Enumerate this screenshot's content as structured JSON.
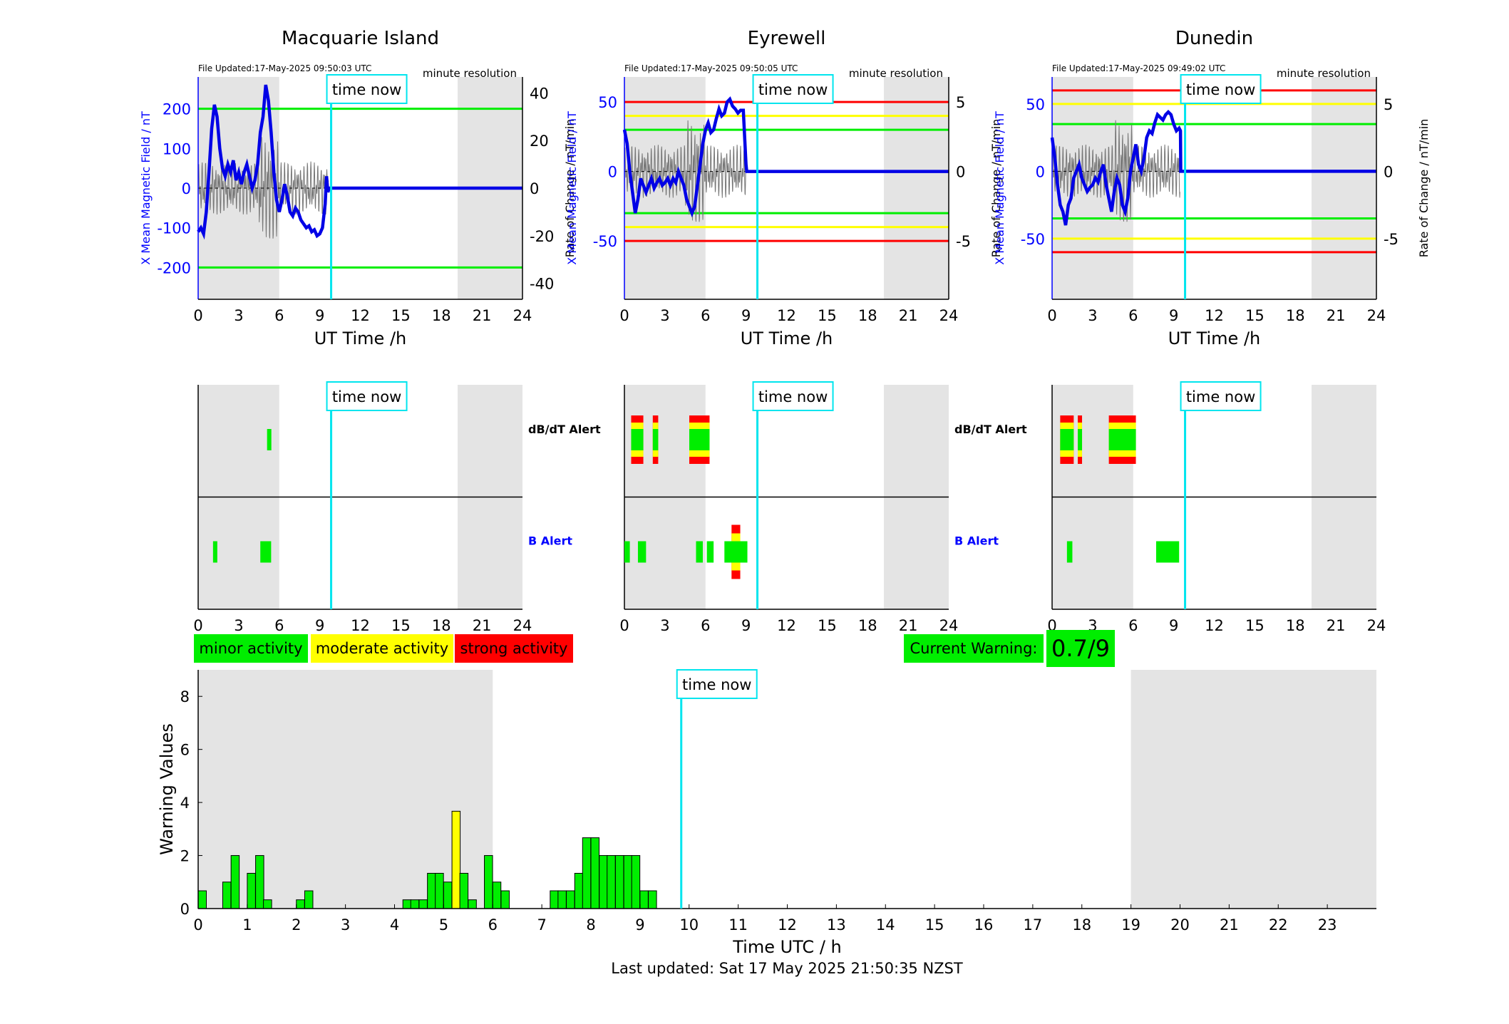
{
  "colors": {
    "data_line": "#0000e6",
    "rate_line": "#777777",
    "shade": "#e4e4e4",
    "time_now": "#00e5ee",
    "green": "#00ee00",
    "yellow": "#ffff00",
    "red": "#ff0000",
    "axis_blue": "#0000ff"
  },
  "time_now_label": "time now",
  "time_now_hour": 9.84,
  "resolution_label": "minute resolution",
  "x_axis_label": "UT Time /h",
  "top_left_ylabel": "X Mean Magnetic Field / nT",
  "top_right_ylabel": "Rate of Change / nT/min",
  "hour_ticks": [
    "0",
    "3",
    "6",
    "9",
    "12",
    "15",
    "18",
    "21",
    "24"
  ],
  "night_shading_hours": [
    [
      0,
      6
    ],
    [
      19.2,
      24
    ]
  ],
  "stations": [
    {
      "name": "Macquarie Island",
      "file_updated": "File Updated:17-May-2025 09:50:03 UTC",
      "left_ticks": [
        "200",
        "100",
        "0",
        "-100",
        "-200"
      ],
      "right_ticks": [
        "40",
        "20",
        "0",
        "-20",
        "-40"
      ],
      "left_ylim": [
        -280,
        280
      ],
      "threshold_lines": [
        {
          "value": 200,
          "color": "green"
        },
        {
          "value": -200,
          "color": "green"
        }
      ],
      "field_trace": [
        [
          0,
          -110
        ],
        [
          0.2,
          -100
        ],
        [
          0.4,
          -115
        ],
        [
          0.6,
          -60
        ],
        [
          0.8,
          40
        ],
        [
          1.0,
          150
        ],
        [
          1.2,
          210
        ],
        [
          1.4,
          180
        ],
        [
          1.6,
          100
        ],
        [
          1.8,
          50
        ],
        [
          2.0,
          30
        ],
        [
          2.2,
          60
        ],
        [
          2.4,
          40
        ],
        [
          2.6,
          70
        ],
        [
          2.8,
          20
        ],
        [
          3.0,
          40
        ],
        [
          3.2,
          10
        ],
        [
          3.4,
          40
        ],
        [
          3.6,
          60
        ],
        [
          3.8,
          30
        ],
        [
          4.0,
          0
        ],
        [
          4.2,
          20
        ],
        [
          4.4,
          60
        ],
        [
          4.6,
          140
        ],
        [
          4.8,
          180
        ],
        [
          5.0,
          260
        ],
        [
          5.2,
          220
        ],
        [
          5.4,
          140
        ],
        [
          5.6,
          40
        ],
        [
          5.8,
          -30
        ],
        [
          6.0,
          -60
        ],
        [
          6.2,
          -30
        ],
        [
          6.4,
          10
        ],
        [
          6.6,
          -20
        ],
        [
          6.8,
          -60
        ],
        [
          7.0,
          -70
        ],
        [
          7.2,
          -50
        ],
        [
          7.4,
          -60
        ],
        [
          7.6,
          -80
        ],
        [
          7.8,
          -90
        ],
        [
          8.0,
          -100
        ],
        [
          8.2,
          -95
        ],
        [
          8.4,
          -110
        ],
        [
          8.6,
          -105
        ],
        [
          8.8,
          -120
        ],
        [
          9.0,
          -115
        ],
        [
          9.2,
          -100
        ],
        [
          9.4,
          -40
        ],
        [
          9.5,
          30
        ],
        [
          9.6,
          -10
        ],
        [
          9.7,
          0
        ],
        [
          24,
          0
        ]
      ],
      "b_alert_blocks": [
        [
          1.1,
          1.4,
          "green"
        ],
        [
          4.6,
          5.4,
          "green"
        ]
      ],
      "dbdt_alert_blocks": [
        [
          5.1,
          5.4,
          "green"
        ]
      ]
    },
    {
      "name": "Eyrewell",
      "file_updated": "File Updated:17-May-2025 09:50:05 UTC",
      "left_ticks": [
        "50",
        "0",
        "-50"
      ],
      "right_ticks": [
        "5",
        "0",
        "-5"
      ],
      "left_ylim": [
        -92,
        68
      ],
      "threshold_lines": [
        {
          "value": 50,
          "color": "red"
        },
        {
          "value": 40,
          "color": "yellow"
        },
        {
          "value": 30,
          "color": "green"
        },
        {
          "value": -30,
          "color": "green"
        },
        {
          "value": -40,
          "color": "yellow"
        },
        {
          "value": -50,
          "color": "red"
        }
      ],
      "field_trace": [
        [
          0,
          30
        ],
        [
          0.2,
          20
        ],
        [
          0.4,
          0
        ],
        [
          0.6,
          -15
        ],
        [
          0.8,
          -30
        ],
        [
          1.0,
          -20
        ],
        [
          1.2,
          -5
        ],
        [
          1.4,
          -10
        ],
        [
          1.6,
          -15
        ],
        [
          1.8,
          -10
        ],
        [
          2.0,
          -5
        ],
        [
          2.2,
          -12
        ],
        [
          2.4,
          -8
        ],
        [
          2.6,
          -5
        ],
        [
          2.8,
          -10
        ],
        [
          3.0,
          -8
        ],
        [
          3.2,
          -5
        ],
        [
          3.4,
          -10
        ],
        [
          3.6,
          -5
        ],
        [
          3.8,
          -8
        ],
        [
          4.0,
          0
        ],
        [
          4.2,
          -5
        ],
        [
          4.4,
          -10
        ],
        [
          4.6,
          -20
        ],
        [
          4.8,
          -25
        ],
        [
          5.0,
          -30
        ],
        [
          5.2,
          -25
        ],
        [
          5.4,
          -10
        ],
        [
          5.6,
          5
        ],
        [
          5.8,
          20
        ],
        [
          6.0,
          30
        ],
        [
          6.2,
          35
        ],
        [
          6.4,
          28
        ],
        [
          6.6,
          30
        ],
        [
          6.8,
          38
        ],
        [
          7.0,
          45
        ],
        [
          7.2,
          40
        ],
        [
          7.4,
          42
        ],
        [
          7.6,
          50
        ],
        [
          7.8,
          52
        ],
        [
          8.0,
          47
        ],
        [
          8.2,
          45
        ],
        [
          8.4,
          42
        ],
        [
          8.6,
          44
        ],
        [
          8.8,
          44
        ],
        [
          9.0,
          5
        ],
        [
          9.05,
          0
        ],
        [
          24,
          0
        ]
      ],
      "b_alert_blocks": [
        [
          0.0,
          0.4,
          "green"
        ],
        [
          1.0,
          1.6,
          "green"
        ],
        [
          5.3,
          5.8,
          "green"
        ],
        [
          6.1,
          6.6,
          "green"
        ],
        [
          7.4,
          9.1,
          "green"
        ]
      ],
      "dbdt_alert_blocks": [
        [
          0.5,
          1.4,
          "green"
        ],
        [
          2.1,
          2.5,
          "green"
        ],
        [
          4.8,
          6.3,
          "green"
        ]
      ]
    },
    {
      "name": "Dunedin",
      "file_updated": "File Updated:17-May-2025 09:49:02 UTC",
      "left_ticks": [
        "50",
        "0",
        "-50"
      ],
      "right_ticks": [
        "5",
        "0",
        "-5"
      ],
      "left_ylim": [
        -95,
        70
      ],
      "threshold_lines": [
        {
          "value": 60,
          "color": "red"
        },
        {
          "value": 50,
          "color": "yellow"
        },
        {
          "value": 35,
          "color": "green"
        },
        {
          "value": -35,
          "color": "green"
        },
        {
          "value": -50,
          "color": "yellow"
        },
        {
          "value": -60,
          "color": "red"
        }
      ],
      "field_trace": [
        [
          0,
          25
        ],
        [
          0.2,
          10
        ],
        [
          0.4,
          -10
        ],
        [
          0.6,
          -25
        ],
        [
          0.8,
          -30
        ],
        [
          1.0,
          -40
        ],
        [
          1.2,
          -25
        ],
        [
          1.4,
          -20
        ],
        [
          1.6,
          -5
        ],
        [
          1.8,
          0
        ],
        [
          2.0,
          5
        ],
        [
          2.2,
          -5
        ],
        [
          2.4,
          -10
        ],
        [
          2.6,
          -15
        ],
        [
          2.8,
          -12
        ],
        [
          3.0,
          -10
        ],
        [
          3.2,
          -5
        ],
        [
          3.4,
          -8
        ],
        [
          3.6,
          0
        ],
        [
          3.8,
          5
        ],
        [
          4.0,
          -10
        ],
        [
          4.2,
          -20
        ],
        [
          4.4,
          -30
        ],
        [
          4.6,
          -15
        ],
        [
          4.8,
          -5
        ],
        [
          5.0,
          -10
        ],
        [
          5.2,
          -25
        ],
        [
          5.4,
          -30
        ],
        [
          5.6,
          -20
        ],
        [
          5.8,
          0
        ],
        [
          6.0,
          10
        ],
        [
          6.2,
          20
        ],
        [
          6.4,
          5
        ],
        [
          6.6,
          0
        ],
        [
          6.8,
          10
        ],
        [
          7.0,
          25
        ],
        [
          7.2,
          30
        ],
        [
          7.4,
          28
        ],
        [
          7.6,
          36
        ],
        [
          7.8,
          42
        ],
        [
          8.0,
          40
        ],
        [
          8.2,
          38
        ],
        [
          8.4,
          42
        ],
        [
          8.6,
          44
        ],
        [
          8.8,
          42
        ],
        [
          9.0,
          35
        ],
        [
          9.2,
          30
        ],
        [
          9.4,
          32
        ],
        [
          9.5,
          30
        ],
        [
          9.52,
          0
        ],
        [
          24,
          0
        ]
      ],
      "b_alert_blocks": [
        [
          1.1,
          1.5,
          "green"
        ],
        [
          7.7,
          9.4,
          "green"
        ]
      ],
      "dbdt_alert_blocks": [
        [
          0.6,
          1.6,
          "green"
        ],
        [
          1.9,
          2.2,
          "green"
        ],
        [
          4.2,
          6.2,
          "green"
        ]
      ]
    }
  ],
  "alert_labels": {
    "dbdt": "dB/dT Alert",
    "b": "B Alert"
  },
  "legend": {
    "minor": "minor activity",
    "moderate": "moderate activity",
    "strong": "strong activity"
  },
  "current_warning": {
    "label": "Current Warning:",
    "value": "0.7/9"
  },
  "chart_data": {
    "type": "bar",
    "title": "",
    "xlabel": "Time UTC / h",
    "ylabel": "Warning Values",
    "ylim": [
      0,
      9
    ],
    "xlim": [
      0,
      24
    ],
    "y_ticks": [
      "0",
      "2",
      "4",
      "6",
      "8"
    ],
    "x_ticks": [
      "0",
      "1",
      "2",
      "3",
      "4",
      "5",
      "6",
      "7",
      "8",
      "9",
      "10",
      "11",
      "12",
      "13",
      "14",
      "15",
      "16",
      "17",
      "18",
      "19",
      "20",
      "21",
      "22",
      "23"
    ],
    "bar_width_hours": 0.167,
    "bars": [
      {
        "x": 0.0,
        "value": 0.67,
        "level": "minor"
      },
      {
        "x": 0.5,
        "value": 1.0,
        "level": "minor"
      },
      {
        "x": 0.67,
        "value": 2.0,
        "level": "minor"
      },
      {
        "x": 1.0,
        "value": 1.33,
        "level": "minor"
      },
      {
        "x": 1.17,
        "value": 2.0,
        "level": "minor"
      },
      {
        "x": 1.33,
        "value": 0.33,
        "level": "minor"
      },
      {
        "x": 2.0,
        "value": 0.33,
        "level": "minor"
      },
      {
        "x": 2.17,
        "value": 0.67,
        "level": "minor"
      },
      {
        "x": 4.17,
        "value": 0.33,
        "level": "minor"
      },
      {
        "x": 4.33,
        "value": 0.33,
        "level": "minor"
      },
      {
        "x": 4.5,
        "value": 0.33,
        "level": "minor"
      },
      {
        "x": 4.67,
        "value": 1.33,
        "level": "minor"
      },
      {
        "x": 4.83,
        "value": 1.33,
        "level": "minor"
      },
      {
        "x": 5.0,
        "value": 1.0,
        "level": "minor"
      },
      {
        "x": 5.17,
        "value": 3.67,
        "level": "moderate"
      },
      {
        "x": 5.33,
        "value": 1.33,
        "level": "minor"
      },
      {
        "x": 5.5,
        "value": 0.33,
        "level": "minor"
      },
      {
        "x": 5.83,
        "value": 2.0,
        "level": "minor"
      },
      {
        "x": 6.0,
        "value": 1.0,
        "level": "minor"
      },
      {
        "x": 6.17,
        "value": 0.67,
        "level": "minor"
      },
      {
        "x": 7.17,
        "value": 0.67,
        "level": "minor"
      },
      {
        "x": 7.33,
        "value": 0.67,
        "level": "minor"
      },
      {
        "x": 7.5,
        "value": 0.67,
        "level": "minor"
      },
      {
        "x": 7.67,
        "value": 1.33,
        "level": "minor"
      },
      {
        "x": 7.83,
        "value": 2.67,
        "level": "minor"
      },
      {
        "x": 8.0,
        "value": 2.67,
        "level": "minor"
      },
      {
        "x": 8.17,
        "value": 2.0,
        "level": "minor"
      },
      {
        "x": 8.33,
        "value": 2.0,
        "level": "minor"
      },
      {
        "x": 8.5,
        "value": 2.0,
        "level": "minor"
      },
      {
        "x": 8.67,
        "value": 2.0,
        "level": "minor"
      },
      {
        "x": 8.83,
        "value": 2.0,
        "level": "minor"
      },
      {
        "x": 9.0,
        "value": 0.67,
        "level": "minor"
      },
      {
        "x": 9.17,
        "value": 0.67,
        "level": "minor"
      }
    ],
    "shaded_hours": [
      [
        0,
        6
      ],
      [
        19,
        24
      ]
    ],
    "time_now_hour": 9.84
  },
  "last_updated": "Last updated: Sat 17 May 2025 21:50:35 NZST"
}
